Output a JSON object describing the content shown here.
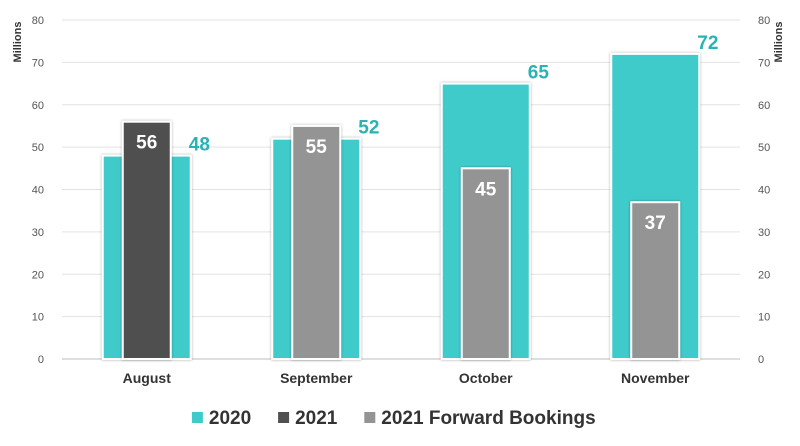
{
  "chart_data": {
    "type": "bar",
    "categories": [
      "August",
      "September",
      "October",
      "November"
    ],
    "series": [
      {
        "name": "2020",
        "values": [
          48,
          52,
          65,
          72
        ],
        "color": "#40cbcb"
      },
      {
        "name": "2021",
        "values": [
          56,
          null,
          null,
          null
        ],
        "color": "#505050"
      },
      {
        "name": "2021 Forward Bookings",
        "values": [
          null,
          55,
          45,
          37
        ],
        "color": "#949494"
      }
    ],
    "data_labels": {
      "outer": [
        "48",
        "52",
        "65",
        "72"
      ],
      "inner": [
        "56",
        "55",
        "45",
        "37"
      ]
    },
    "y_unit_label": "Millions",
    "yticks": [
      0,
      10,
      20,
      30,
      40,
      50,
      60,
      70,
      80
    ],
    "ylim": [
      0,
      80
    ],
    "grid": true,
    "legend_position": "bottom-center",
    "label_color_outer": "#2ab3b3"
  }
}
